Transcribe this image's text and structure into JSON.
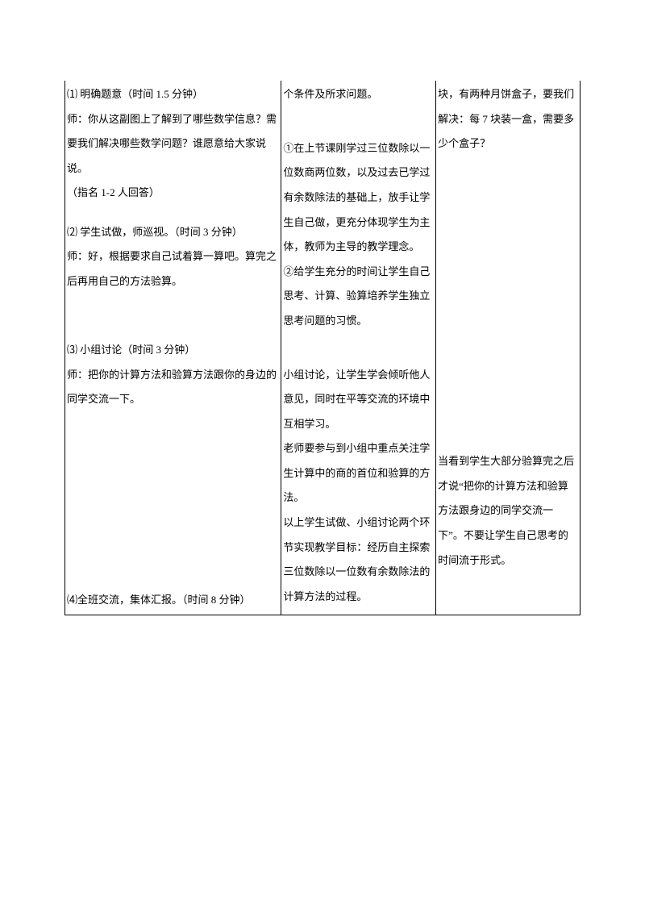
{
  "colors": {
    "text": "#000000",
    "border": "#000000",
    "background": "#ffffff"
  },
  "font": {
    "family": "SimSun",
    "size_pt": 10,
    "line_height": 2.35
  },
  "table": {
    "columns": [
      {
        "key": "col1",
        "width_pct": 42
      },
      {
        "key": "col2",
        "width_pct": 30
      },
      {
        "key": "col3",
        "width_pct": 28
      }
    ]
  },
  "col1": {
    "p1": "⑴ 明确题意（时间 1.5 分钟）",
    "p2": "师：你从这副图上了解到了哪些数学信息？需要我们解决哪些数学问题？谁愿意给大家说说。",
    "p3": "（指名 1-2 人回答）",
    "p4": "⑵ 学生试做，师巡视。（时间 3 分钟）",
    "p5": "师：好，根据要求自己试着算一算吧。算完之后再用自己的方法验算。",
    "p6": "⑶ 小组讨论（时间 3 分钟）",
    "p7": "师：把你的计算方法和验算方法跟你的身边的同学交流一下。",
    "p8": "⑷全班交流，集体汇报。（时间 8 分钟）"
  },
  "col2": {
    "p1": "个条件及所求问题。",
    "p2": "①在上节课刚学过三位数除以一位数商两位数，以及过去已学过有余数除法的基础上，放手让学生自己做，更充分体现学生为主体，教师为主导的教学理念。",
    "p3": "②给学生充分的时间让学生自己思考、计算、验算培养学生独立思考问题的习惯。",
    "p4": "小组讨论，让学生学会倾听他人意见，同时在平等交流的环境中互相学习。",
    "p5": "老师要参与到小组中重点关注学生计算中的商的首位和验算的方法。",
    "p6": "以上学生试做、小组讨论两个环节实现教学目标：经历自主探索三位数除以一位数有余数除法的计算方法的过程。"
  },
  "col3": {
    "p1": "块，有两种月饼盒子，要我们解决：每 7 块装一盒，需要多少个盒子？",
    "p2": "当看到学生大部分验算完之后才说“把你的计算方法和验算方法跟身边的同学交流一下”。不要让学生自己思考的时间流于形式。"
  }
}
